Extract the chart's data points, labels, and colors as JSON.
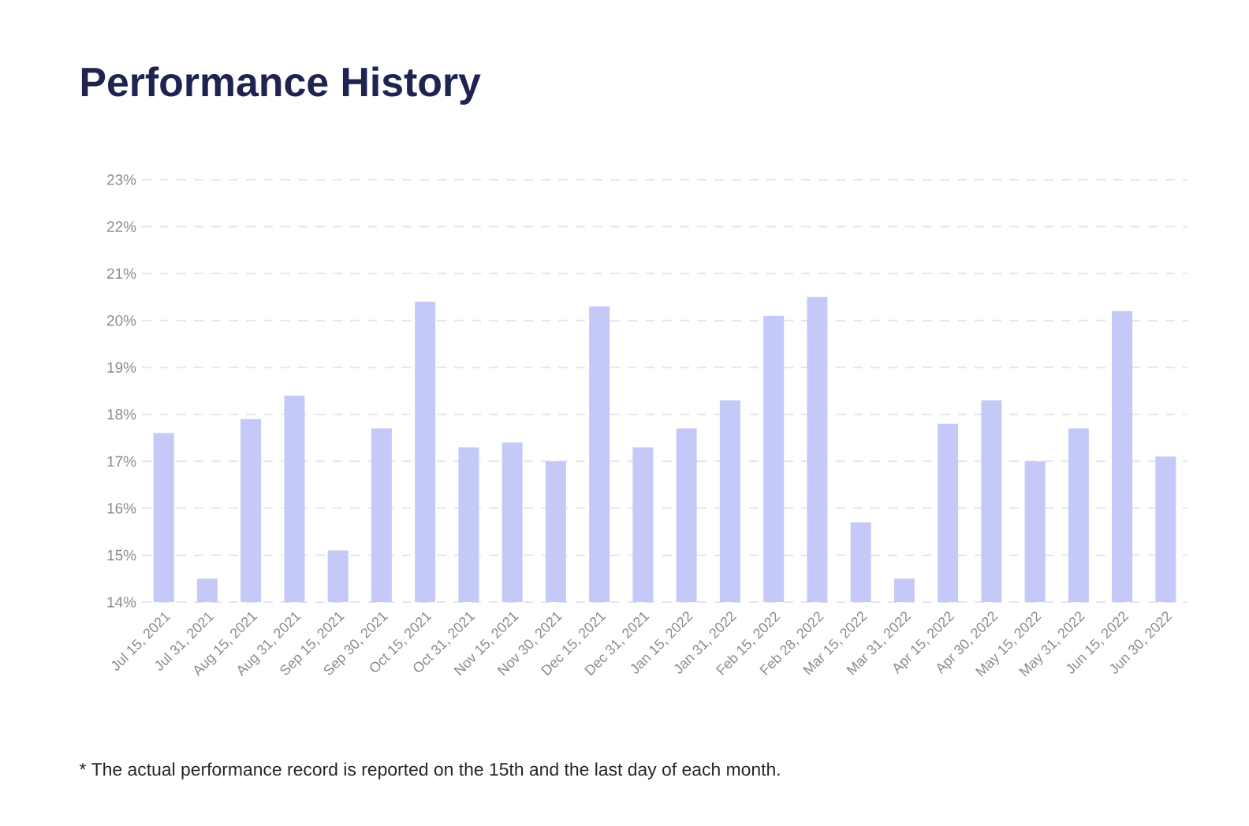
{
  "chart_data": {
    "type": "bar",
    "title": "Performance History",
    "categories": [
      "Jul 15, 2021",
      "Jul 31, 2021",
      "Aug 15, 2021",
      "Aug 31, 2021",
      "Sep 15, 2021",
      "Sep 30, 2021",
      "Oct 15, 2021",
      "Oct 31, 2021",
      "Nov 15, 2021",
      "Nov 30, 2021",
      "Dec 15, 2021",
      "Dec 31, 2021",
      "Jan 15, 2022",
      "Jan 31, 2022",
      "Feb 15, 2022",
      "Feb 28, 2022",
      "Mar 15, 2022",
      "Mar 31, 2022",
      "Apr 15, 2022",
      "Apr 30, 2022",
      "May 15, 2022",
      "May 31, 2022",
      "Jun 15, 2022",
      "Jun 30, 2022"
    ],
    "values": [
      17.6,
      14.5,
      17.9,
      18.4,
      15.1,
      17.7,
      20.4,
      17.3,
      17.4,
      17.0,
      20.3,
      17.3,
      17.7,
      18.3,
      20.1,
      20.5,
      15.7,
      14.5,
      17.8,
      18.3,
      17.0,
      17.7,
      20.2,
      17.1
    ],
    "color": "#c5c9f7",
    "ylim": [
      14,
      23
    ],
    "yticks": [
      {
        "value": 14,
        "label": "14%"
      },
      {
        "value": 15,
        "label": "15%"
      },
      {
        "value": 16,
        "label": "16%"
      },
      {
        "value": 17,
        "label": "17%"
      },
      {
        "value": 18,
        "label": "18%"
      },
      {
        "value": 19,
        "label": "19%"
      },
      {
        "value": 20,
        "label": "20%"
      },
      {
        "value": 21,
        "label": "21%"
      },
      {
        "value": 22,
        "label": "22%"
      },
      {
        "value": 23,
        "label": "23%"
      }
    ],
    "grid": "y",
    "annotations": [
      "* The actual performance record is reported on the 15th and the last day of each month."
    ]
  }
}
